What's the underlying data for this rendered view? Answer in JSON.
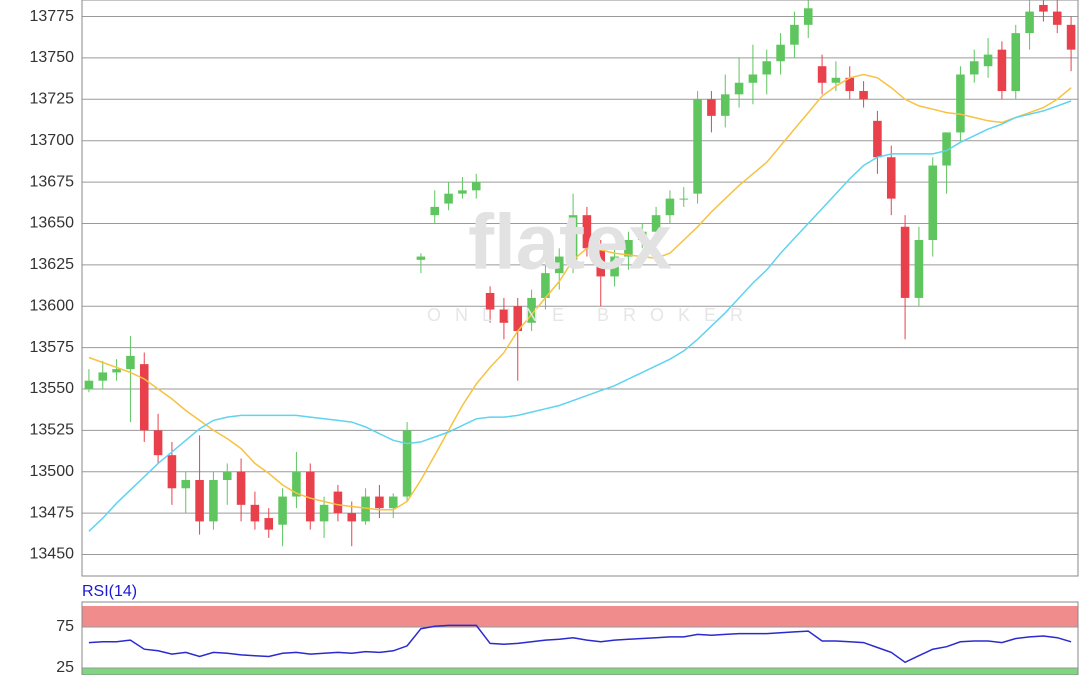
{
  "chart_data": [
    {
      "type": "candlestick",
      "watermark": "flatex",
      "watermark_sub": "ONLINE BROKER",
      "ylim": [
        13437,
        13785
      ],
      "yticks": [
        13450,
        13475,
        13500,
        13525,
        13550,
        13575,
        13600,
        13625,
        13650,
        13675,
        13700,
        13725,
        13750,
        13775
      ],
      "grid": true,
      "up_color": "#5fc65f",
      "down_color": "#e8414b",
      "open": [
        13550,
        13555,
        13560,
        13562,
        13565,
        13525,
        13510,
        13490,
        13495,
        13470,
        13495,
        13500,
        13480,
        13472,
        13468,
        13485,
        13500,
        13470,
        13488,
        13475,
        13470,
        13485,
        13478,
        13485,
        13628,
        13655,
        13662,
        13668,
        13670,
        13608,
        13598,
        13600,
        13590,
        13605,
        13620,
        13628,
        13655,
        13635,
        13618,
        13630,
        13640,
        13645,
        13655,
        13665,
        13668,
        13725,
        13715,
        13728,
        13735,
        13740,
        13748,
        13758,
        13770,
        13745,
        13735,
        13738,
        13730,
        13712,
        13690,
        13648,
        13605,
        13640,
        13685,
        13705,
        13740,
        13745,
        13755,
        13730,
        13765,
        13782,
        13778,
        13770
      ],
      "high": [
        13562,
        13567,
        13568,
        13582,
        13572,
        13535,
        13518,
        13500,
        13522,
        13500,
        13505,
        13508,
        13488,
        13478,
        13490,
        13512,
        13505,
        13485,
        13492,
        13482,
        13490,
        13492,
        13487,
        13530,
        13632,
        13670,
        13675,
        13678,
        13680,
        13612,
        13605,
        13605,
        13610,
        13625,
        13635,
        13668,
        13660,
        13640,
        13635,
        13645,
        13650,
        13660,
        13670,
        13672,
        13730,
        13730,
        13740,
        13750,
        13758,
        13755,
        13765,
        13778,
        13790,
        13752,
        13748,
        13745,
        13736,
        13718,
        13697,
        13655,
        13648,
        13690,
        13705,
        13745,
        13755,
        13762,
        13760,
        13770,
        13785,
        13790,
        13785,
        13775
      ],
      "low": [
        13548,
        13550,
        13555,
        13530,
        13518,
        13505,
        13480,
        13475,
        13462,
        13465,
        13480,
        13470,
        13465,
        13460,
        13455,
        13478,
        13465,
        13460,
        13470,
        13455,
        13468,
        13472,
        13472,
        13482,
        13620,
        13650,
        13658,
        13665,
        13665,
        13590,
        13580,
        13555,
        13585,
        13598,
        13610,
        13620,
        13630,
        13600,
        13612,
        13622,
        13635,
        13640,
        13650,
        13660,
        13662,
        13705,
        13708,
        13720,
        13722,
        13728,
        13740,
        13750,
        13762,
        13728,
        13730,
        13725,
        13720,
        13680,
        13655,
        13580,
        13600,
        13630,
        13668,
        13700,
        13735,
        13738,
        13725,
        13725,
        13755,
        13772,
        13765,
        13742
      ],
      "close": [
        13555,
        13560,
        13562,
        13570,
        13525,
        13510,
        13490,
        13495,
        13470,
        13495,
        13500,
        13480,
        13470,
        13465,
        13485,
        13500,
        13470,
        13480,
        13475,
        13470,
        13485,
        13478,
        13485,
        13525,
        13630,
        13660,
        13668,
        13670,
        13675,
        13598,
        13590,
        13585,
        13605,
        13620,
        13630,
        13655,
        13635,
        13618,
        13630,
        13640,
        13645,
        13655,
        13665,
        13665,
        13725,
        13715,
        13728,
        13735,
        13740,
        13748,
        13758,
        13770,
        13780,
        13735,
        13738,
        13730,
        13725,
        13690,
        13665,
        13605,
        13640,
        13685,
        13705,
        13740,
        13748,
        13752,
        13730,
        13765,
        13778,
        13778,
        13770,
        13755
      ],
      "series": [
        {
          "color": "#f7c242",
          "values": [
            13569,
            13566,
            13563,
            13560,
            13556,
            13550,
            13544,
            13537,
            13531,
            13525,
            13520,
            13514,
            13505,
            13499,
            13492,
            13487,
            13484,
            13482,
            13480,
            13479,
            13478,
            13477,
            13477,
            13482,
            13495,
            13510,
            13525,
            13540,
            13553,
            13563,
            13572,
            13585,
            13595,
            13605,
            13615,
            13628,
            13635,
            13634,
            13632,
            13631,
            13630,
            13629,
            13632,
            13640,
            13648,
            13657,
            13665,
            13673,
            13680,
            13687,
            13697,
            13707,
            13717,
            13727,
            13733,
            13738,
            13740,
            13738,
            13732,
            13725,
            13721,
            13719,
            13717,
            13716,
            13714,
            13712,
            13711,
            13714,
            13717,
            13720,
            13725,
            13732
          ]
        },
        {
          "color": "#5fd3f0",
          "values": [
            13464,
            13472,
            13481,
            13489,
            13497,
            13505,
            13512,
            13519,
            13526,
            13531,
            13533,
            13534,
            13534,
            13534,
            13534,
            13534,
            13533,
            13532,
            13531,
            13530,
            13527,
            13523,
            13519,
            13517,
            13518,
            13521,
            13524,
            13528,
            13532,
            13533,
            13533,
            13534,
            13536,
            13538,
            13540,
            13543,
            13546,
            13549,
            13552,
            13556,
            13560,
            13564,
            13568,
            13573,
            13580,
            13588,
            13596,
            13605,
            13614,
            13622,
            13632,
            13641,
            13650,
            13659,
            13668,
            13677,
            13685,
            13690,
            13692,
            13692,
            13692,
            13692,
            13694,
            13699,
            13703,
            13707,
            13710,
            13714,
            13716,
            13718,
            13721,
            13724
          ]
        }
      ]
    },
    {
      "type": "line",
      "title": "RSI(14)",
      "ylim": [
        16.5,
        105.5
      ],
      "yticks": [
        25,
        75
      ],
      "zones": [
        {
          "from": 75,
          "to": 100,
          "color": "#f08c8c"
        },
        {
          "from": 0,
          "to": 25,
          "color": "#7fd67f"
        }
      ],
      "series": [
        {
          "color": "#2a2ad0",
          "values": [
            56,
            57,
            57,
            59,
            48,
            46,
            42,
            44,
            39,
            44,
            43,
            41,
            40,
            39,
            43,
            44,
            42,
            43,
            44,
            43,
            45,
            44,
            46,
            52,
            73,
            76,
            77,
            77,
            77,
            55,
            54,
            55,
            57,
            59,
            60,
            62,
            59,
            57,
            59,
            60,
            61,
            62,
            63,
            63,
            66,
            65,
            66,
            67,
            67,
            67,
            68,
            69,
            70,
            58,
            58,
            57,
            56,
            50,
            44,
            32,
            40,
            48,
            51,
            57,
            58,
            58,
            56,
            61,
            63,
            64,
            62,
            57
          ]
        }
      ]
    }
  ]
}
